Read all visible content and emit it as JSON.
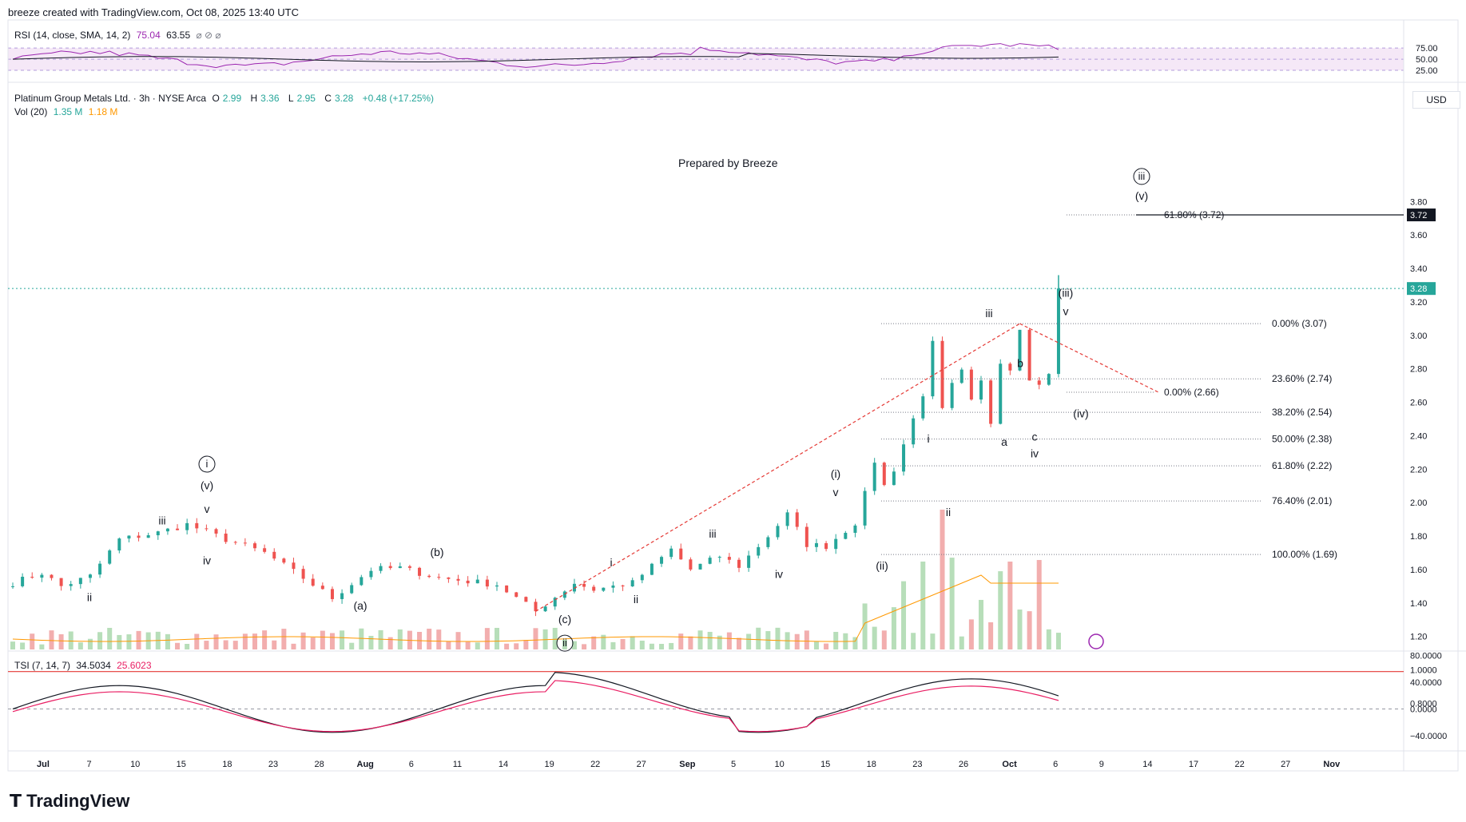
{
  "header": {
    "text": "breeze created with TradingView.com, Oct 08, 2025 13:40 UTC"
  },
  "rsi_legend": {
    "name": "RSI (14, close, SMA, 14, 2)",
    "value1": "75.04",
    "value2": "63.55",
    "icons": "⌀ ⊘ ⌀"
  },
  "price_legend": {
    "symbol": "Platinum Group Metals Ltd. · 3h · NYSE Arca",
    "o_label": "O",
    "o": "2.99",
    "h_label": "H",
    "h": "3.36",
    "l_label": "L",
    "l": "2.95",
    "c_label": "C",
    "c": "3.28",
    "change": "+0.48 (+17.25%)"
  },
  "vol_legend": {
    "name": "Vol (20)",
    "value1": "1.35 M",
    "value2": "1.18 M"
  },
  "tsi_legend": {
    "name": "TSI (7, 14, 7)",
    "value1": "34.5034",
    "value2": "25.6023"
  },
  "watermark_text": "Prepared by Breeze",
  "currency": "USD",
  "logo": "TradingView",
  "colors": {
    "up": "#26a69a",
    "down": "#ef5350",
    "rsi": "#9c27b0",
    "tsi_signal": "#e91e63",
    "level_line": "#e53935"
  },
  "chart_data": {
    "type": "candlestick",
    "price_axis": {
      "ticks": [
        "3.80",
        "3.60",
        "3.40",
        "3.20",
        "3.00",
        "2.80",
        "2.60",
        "2.40",
        "2.20",
        "2.00",
        "1.80",
        "1.60",
        "1.40",
        "1.20",
        "1.0000",
        "0.8000"
      ],
      "values": [
        3.8,
        3.6,
        3.4,
        3.2,
        3.0,
        2.8,
        2.6,
        2.4,
        2.2,
        2.0,
        1.8,
        1.6,
        1.4,
        1.2,
        1.0,
        0.8
      ],
      "last_price_label": "3.28",
      "target_label": "3.72"
    },
    "rsi_axis": {
      "ticks": [
        "75.00",
        "50.00",
        "25.00"
      ],
      "values": [
        75,
        50,
        25
      ]
    },
    "tsi_axis": {
      "ticks": [
        "80.0000",
        "40.0000",
        "0.0000",
        "−40.0000"
      ],
      "values": [
        80,
        40,
        0,
        -40
      ]
    },
    "x_axis": {
      "ticks": [
        "Jul",
        "7",
        "10",
        "15",
        "18",
        "23",
        "28",
        "Aug",
        "6",
        "11",
        "14",
        "19",
        "22",
        "27",
        "Sep",
        "5",
        "10",
        "15",
        "18",
        "23",
        "26",
        "Oct",
        "6",
        "9",
        "14",
        "17",
        "22",
        "27",
        "Nov"
      ],
      "bold": [
        "Jul",
        "Aug",
        "Sep",
        "Oct",
        "Nov"
      ]
    },
    "horizontal_level": 0.99,
    "fib_retracement": [
      {
        "label": "0.00% (3.07)",
        "value": 3.07
      },
      {
        "label": "23.60% (2.74)",
        "value": 2.74
      },
      {
        "label": "38.20% (2.54)",
        "value": 2.54
      },
      {
        "label": "50.00% (2.38)",
        "value": 2.38
      },
      {
        "label": "61.80% (2.22)",
        "value": 2.22
      },
      {
        "label": "76.40% (2.01)",
        "value": 2.01
      },
      {
        "label": "100.00% (1.69)",
        "value": 1.69
      }
    ],
    "fib_extension": [
      {
        "label": "0.00% (2.66)",
        "value": 2.66
      },
      {
        "label": "61.80% (3.72)",
        "value": 3.72
      }
    ],
    "wave_labels": [
      {
        "text": "ii",
        "x": 2,
        "v": 1.41
      },
      {
        "text": "iii",
        "x": 4,
        "v": 1.87
      },
      {
        "text": "ⓘ",
        "x": 5,
        "v": 2.23
      },
      {
        "text": "(v)",
        "x": 5,
        "v": 2.08
      },
      {
        "text": "v",
        "x": 5,
        "v": 1.94
      },
      {
        "text": "iv",
        "x": 5,
        "v": 1.63
      },
      {
        "text": "(a)",
        "x": 9,
        "v": 1.36
      },
      {
        "text": "(b)",
        "x": 11,
        "v": 1.68
      },
      {
        "text": "i",
        "x": 16,
        "v": 1.62
      },
      {
        "text": "(c)",
        "x": 15,
        "v": 1.28
      },
      {
        "text": "ⓘⓘ",
        "x": 15,
        "v": 1.16
      },
      {
        "text": "ii",
        "x": 17,
        "v": 1.4
      },
      {
        "text": "iii",
        "x": 19,
        "v": 1.79
      },
      {
        "text": "iv",
        "x": 21,
        "v": 1.55
      },
      {
        "text": "(i)",
        "x": 23,
        "v": 2.15
      },
      {
        "text": "v",
        "x": 23,
        "v": 2.04
      },
      {
        "text": "(ii)",
        "x": 24,
        "v": 1.6
      },
      {
        "text": "i",
        "x": 25,
        "v": 2.36
      },
      {
        "text": "ii",
        "x": 26,
        "v": 1.92
      },
      {
        "text": "iii",
        "x": 27,
        "v": 3.11
      },
      {
        "text": "a",
        "x": 28,
        "v": 2.34
      },
      {
        "text": "b",
        "x": 29,
        "v": 2.81
      },
      {
        "text": "c",
        "x": 30,
        "v": 2.37
      },
      {
        "text": "iv",
        "x": 30,
        "v": 2.27
      },
      {
        "text": "(iii)",
        "x": 31,
        "v": 3.23
      },
      {
        "text": "v",
        "x": 31,
        "v": 3.12
      },
      {
        "text": "(iv)",
        "x": 32,
        "v": 2.51
      },
      {
        "text": "ⓘⓘⓘ",
        "x": 34,
        "v": 3.95
      },
      {
        "text": "(v)",
        "x": 34,
        "v": 3.81
      }
    ],
    "pivots": [
      {
        "d": 0,
        "v": 1.52
      },
      {
        "d": 3,
        "v": 1.58
      },
      {
        "d": 5,
        "v": 1.5
      },
      {
        "d": 8,
        "v": 1.56
      },
      {
        "d": 11,
        "v": 1.78
      },
      {
        "d": 15,
        "v": 1.82
      },
      {
        "d": 18,
        "v": 1.87
      },
      {
        "d": 22,
        "v": 1.78
      },
      {
        "d": 26,
        "v": 1.7
      },
      {
        "d": 30,
        "v": 1.55
      },
      {
        "d": 33,
        "v": 1.43
      },
      {
        "d": 37,
        "v": 1.6
      },
      {
        "d": 40,
        "v": 1.61
      },
      {
        "d": 44,
        "v": 1.55
      },
      {
        "d": 50,
        "v": 1.51
      },
      {
        "d": 54,
        "v": 1.35
      },
      {
        "d": 58,
        "v": 1.52
      },
      {
        "d": 60,
        "v": 1.48
      },
      {
        "d": 64,
        "v": 1.52
      },
      {
        "d": 68,
        "v": 1.72
      },
      {
        "d": 70,
        "v": 1.6
      },
      {
        "d": 73,
        "v": 1.68
      },
      {
        "d": 75,
        "v": 1.62
      },
      {
        "d": 78,
        "v": 1.8
      },
      {
        "d": 80,
        "v": 1.93
      },
      {
        "d": 82,
        "v": 1.75
      },
      {
        "d": 84,
        "v": 1.74
      },
      {
        "d": 87,
        "v": 1.88
      },
      {
        "d": 88,
        "v": 2.05
      },
      {
        "d": 89,
        "v": 2.25
      },
      {
        "d": 90,
        "v": 2.1
      },
      {
        "d": 91,
        "v": 2.2
      },
      {
        "d": 92,
        "v": 2.35
      },
      {
        "d": 94,
        "v": 2.65
      },
      {
        "d": 95,
        "v": 2.95
      },
      {
        "d": 96,
        "v": 2.55
      },
      {
        "d": 97,
        "v": 2.7
      },
      {
        "d": 98,
        "v": 2.78
      },
      {
        "d": 99,
        "v": 2.6
      },
      {
        "d": 100,
        "v": 2.72
      },
      {
        "d": 101,
        "v": 2.48
      },
      {
        "d": 102,
        "v": 2.85
      },
      {
        "d": 103,
        "v": 2.8
      },
      {
        "d": 104,
        "v": 3.05
      },
      {
        "d": 105,
        "v": 2.75
      },
      {
        "d": 106,
        "v": 2.7
      },
      {
        "d": 107,
        "v": 2.78
      },
      {
        "d": 108,
        "v": 3.28
      }
    ]
  }
}
